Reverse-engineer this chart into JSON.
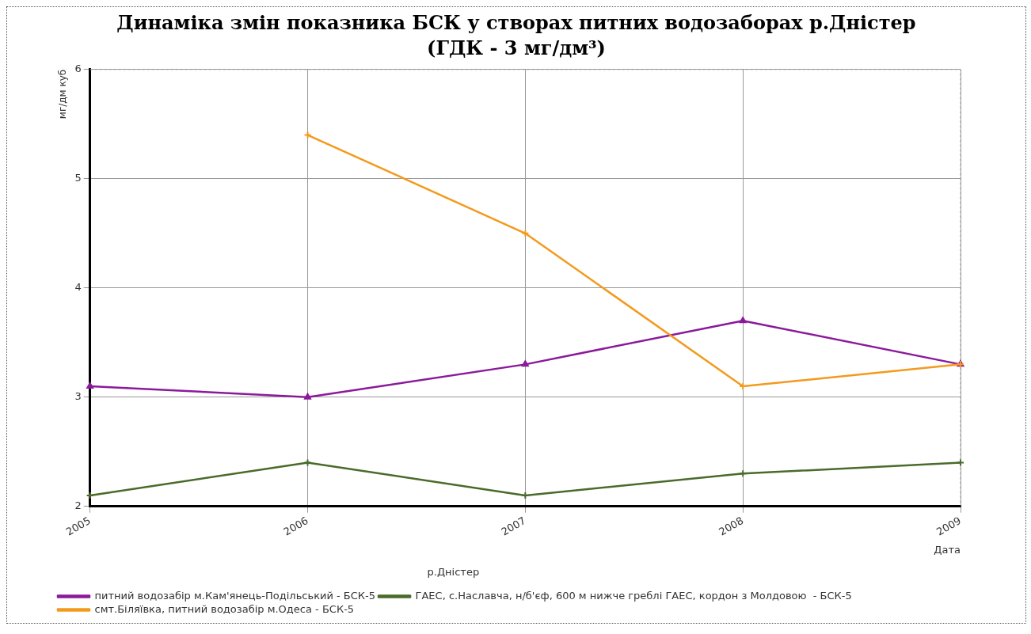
{
  "chart_data": {
    "type": "line",
    "title": "Динаміка змін показника БСК у створах питних водозаборах р.Дністер",
    "subtitle": "(ГДК - 3 мг/дм³)",
    "xlabel": "Дата",
    "ylabel": "мг/дм куб",
    "legend_title": "р.Дністер",
    "categories": [
      "2005",
      "2006",
      "2007",
      "2008",
      "2009"
    ],
    "series": [
      {
        "name": "питний водозабір м.Кам'янець-Подільський - БСК-5",
        "color": "#8b1a9b",
        "marker": "triangle",
        "values": [
          3.1,
          3.0,
          3.3,
          3.7,
          3.3
        ]
      },
      {
        "name": "ГАЕС, с.Наславча, н/б'єф, 600 м нижче греблі ГАЕС, кордон з Молдовою  - БСК-5",
        "color": "#4a6b2a",
        "marker": "cross",
        "values": [
          2.1,
          2.4,
          2.1,
          2.3,
          2.4
        ]
      },
      {
        "name": "смт.Біляївка, питний водозабір м.Одеса - БСК-5",
        "color": "#f39a1e",
        "marker": "cross",
        "values": [
          null,
          5.4,
          4.5,
          3.1,
          3.3
        ]
      }
    ],
    "ylim": [
      2,
      6
    ],
    "yticks": [
      2,
      3,
      4,
      5,
      6
    ],
    "grid": true,
    "legend": "bottom",
    "line_style": "solid"
  }
}
